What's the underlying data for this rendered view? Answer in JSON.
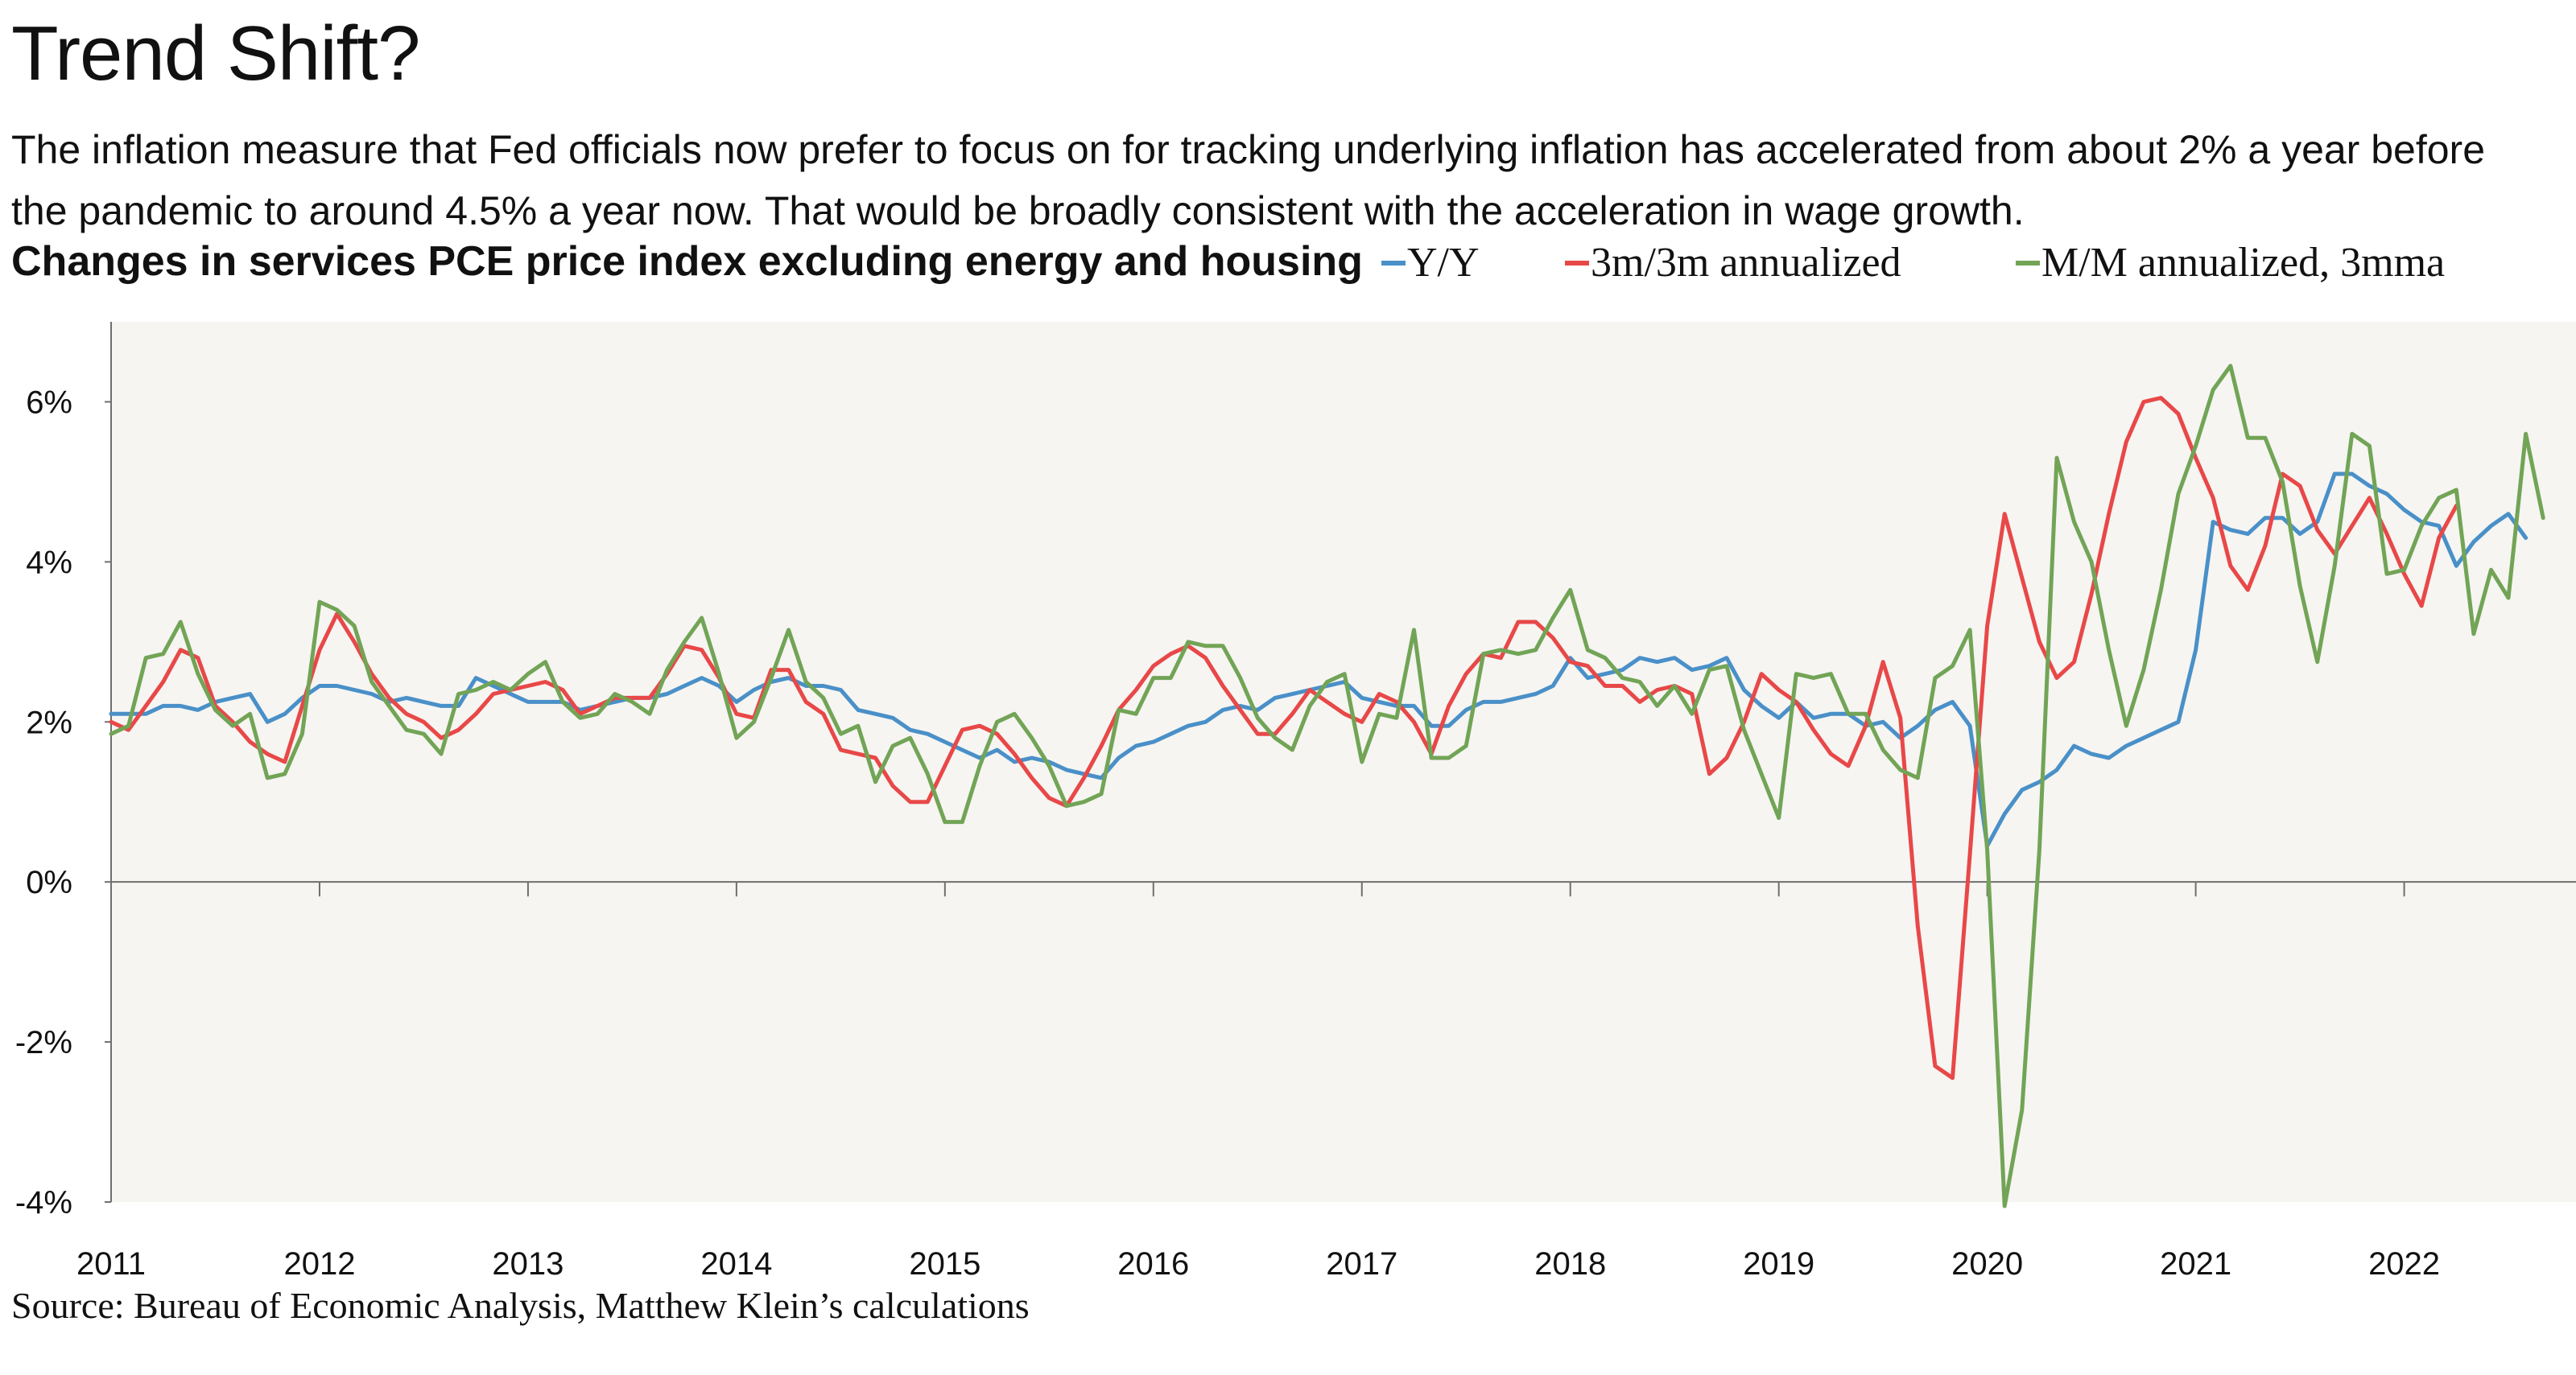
{
  "title": "Trend Shift?",
  "subtitle": "The inflation measure that Fed officials now prefer to focus on for tracking underlying inflation has accelerated from about 2% a year before the pandemic to around 4.5% a year now. That would be broadly consistent with the acceleration in wage growth.",
  "chart_heading": "Changes in services PCE price index excluding energy and housing",
  "source": "Source: Bureau of Economic Analysis, Matthew Klein’s calculations",
  "colors": {
    "yy": "#4a90c8",
    "q3": "#e84848",
    "mm": "#72a456",
    "plot_bg": "#f6f5f2",
    "axis": "#6f6f6f"
  },
  "chart_data": {
    "type": "line",
    "title": "Changes in services PCE price index excluding energy and housing",
    "xlabel": "",
    "ylabel": "",
    "x_start": "2011-01",
    "x_frequency": "monthly",
    "x_ticks": [
      "2011",
      "2012",
      "2013",
      "2014",
      "2015",
      "2016",
      "2017",
      "2018",
      "2019",
      "2020",
      "2021",
      "2022"
    ],
    "xlim": [
      "2011-01",
      "2022-12"
    ],
    "ylim": [
      -4,
      7
    ],
    "y_ticks": [
      -4,
      -2,
      0,
      2,
      4,
      6
    ],
    "y_tick_labels": [
      "-4%",
      "-2%",
      "0%",
      "2%",
      "4%",
      "6%"
    ],
    "grid": false,
    "legend_position": "top-right",
    "series": [
      {
        "name": "Y/Y",
        "color": "#4a90c8",
        "values": [
          2.1,
          2.1,
          2.1,
          2.2,
          2.2,
          2.15,
          2.25,
          2.3,
          2.35,
          2.0,
          2.1,
          2.3,
          2.45,
          2.45,
          2.4,
          2.35,
          2.25,
          2.3,
          2.25,
          2.2,
          2.2,
          2.55,
          2.45,
          2.35,
          2.25,
          2.25,
          2.25,
          2.15,
          2.2,
          2.25,
          2.3,
          2.3,
          2.35,
          2.45,
          2.55,
          2.45,
          2.25,
          2.4,
          2.5,
          2.55,
          2.45,
          2.45,
          2.4,
          2.15,
          2.1,
          2.05,
          1.9,
          1.85,
          1.75,
          1.65,
          1.55,
          1.65,
          1.5,
          1.55,
          1.5,
          1.4,
          1.35,
          1.3,
          1.55,
          1.7,
          1.75,
          1.85,
          1.95,
          2.0,
          2.15,
          2.2,
          2.15,
          2.3,
          2.35,
          2.4,
          2.45,
          2.5,
          2.3,
          2.25,
          2.2,
          2.2,
          1.95,
          1.95,
          2.15,
          2.25,
          2.25,
          2.3,
          2.35,
          2.45,
          2.8,
          2.55,
          2.6,
          2.65,
          2.8,
          2.75,
          2.8,
          2.65,
          2.7,
          2.8,
          2.4,
          2.2,
          2.05,
          2.25,
          2.05,
          2.1,
          2.1,
          1.95,
          2.0,
          1.8,
          1.95,
          2.15,
          2.25,
          1.95,
          0.45,
          0.85,
          1.15,
          1.25,
          1.4,
          1.7,
          1.6,
          1.55,
          1.7,
          1.8,
          1.9,
          2.0,
          2.9,
          4.5,
          4.4,
          4.35,
          4.55,
          4.55,
          4.35,
          4.5,
          5.1,
          5.1,
          4.95,
          4.85,
          4.65,
          4.5,
          4.45,
          3.95,
          4.25,
          4.45,
          4.6,
          4.3
        ]
      },
      {
        "name": "3m/3m annualized",
        "color": "#e84848",
        "values": [
          2.0,
          1.9,
          2.2,
          2.5,
          2.9,
          2.8,
          2.2,
          2.0,
          1.75,
          1.6,
          1.5,
          2.2,
          2.9,
          3.35,
          3.0,
          2.6,
          2.3,
          2.1,
          2.0,
          1.8,
          1.9,
          2.1,
          2.35,
          2.4,
          2.45,
          2.5,
          2.4,
          2.1,
          2.2,
          2.3,
          2.3,
          2.3,
          2.6,
          2.95,
          2.9,
          2.55,
          2.1,
          2.05,
          2.65,
          2.65,
          2.25,
          2.1,
          1.65,
          1.6,
          1.55,
          1.2,
          1.0,
          1.0,
          1.45,
          1.9,
          1.95,
          1.85,
          1.6,
          1.3,
          1.05,
          0.95,
          1.3,
          1.7,
          2.15,
          2.4,
          2.7,
          2.85,
          2.95,
          2.8,
          2.45,
          2.15,
          1.85,
          1.85,
          2.1,
          2.4,
          2.25,
          2.1,
          2.0,
          2.35,
          2.25,
          2.0,
          1.6,
          2.2,
          2.6,
          2.85,
          2.8,
          3.25,
          3.25,
          3.05,
          2.75,
          2.7,
          2.45,
          2.45,
          2.25,
          2.4,
          2.45,
          2.35,
          1.35,
          1.55,
          2.0,
          2.6,
          2.4,
          2.25,
          1.9,
          1.6,
          1.45,
          1.95,
          2.75,
          2.05,
          -0.55,
          -2.3,
          -2.45,
          0.35,
          3.2,
          4.6,
          3.8,
          3.0,
          2.55,
          2.75,
          3.6,
          4.6,
          5.5,
          6.0,
          6.05,
          5.85,
          5.3,
          4.8,
          3.95,
          3.65,
          4.2,
          5.1,
          4.95,
          4.4,
          4.1,
          4.45,
          4.8,
          4.35,
          3.85,
          3.45,
          4.3,
          4.7
        ]
      },
      {
        "name": "M/M annualized, 3mma",
        "color": "#72a456",
        "values": [
          1.85,
          1.95,
          2.8,
          2.85,
          3.25,
          2.6,
          2.15,
          1.95,
          2.1,
          1.3,
          1.35,
          1.85,
          3.5,
          3.4,
          3.2,
          2.5,
          2.2,
          1.9,
          1.85,
          1.6,
          2.35,
          2.4,
          2.5,
          2.4,
          2.6,
          2.75,
          2.25,
          2.05,
          2.1,
          2.35,
          2.25,
          2.1,
          2.65,
          3.0,
          3.3,
          2.6,
          1.8,
          2.0,
          2.55,
          3.15,
          2.5,
          2.3,
          1.85,
          1.95,
          1.25,
          1.7,
          1.8,
          1.35,
          0.75,
          0.75,
          1.45,
          2.0,
          2.1,
          1.8,
          1.45,
          0.95,
          1.0,
          1.1,
          2.15,
          2.1,
          2.55,
          2.55,
          3.0,
          2.95,
          2.95,
          2.55,
          2.05,
          1.8,
          1.65,
          2.2,
          2.5,
          2.6,
          1.5,
          2.1,
          2.05,
          3.15,
          1.55,
          1.55,
          1.7,
          2.85,
          2.9,
          2.85,
          2.9,
          3.3,
          3.65,
          2.9,
          2.8,
          2.55,
          2.5,
          2.2,
          2.45,
          2.1,
          2.65,
          2.7,
          1.9,
          1.35,
          0.8,
          2.6,
          2.55,
          2.6,
          2.1,
          2.1,
          1.65,
          1.4,
          1.3,
          2.55,
          2.7,
          3.15,
          0.4,
          -4.05,
          -2.85,
          0.4,
          5.3,
          4.5,
          4.0,
          2.9,
          1.95,
          2.65,
          3.65,
          4.85,
          5.45,
          6.15,
          6.45,
          5.55,
          5.55,
          5.0,
          3.7,
          2.75,
          3.95,
          5.6,
          5.45,
          3.85,
          3.9,
          4.45,
          4.8,
          4.9,
          3.1,
          3.9,
          3.55,
          5.6,
          4.55
        ]
      }
    ]
  }
}
